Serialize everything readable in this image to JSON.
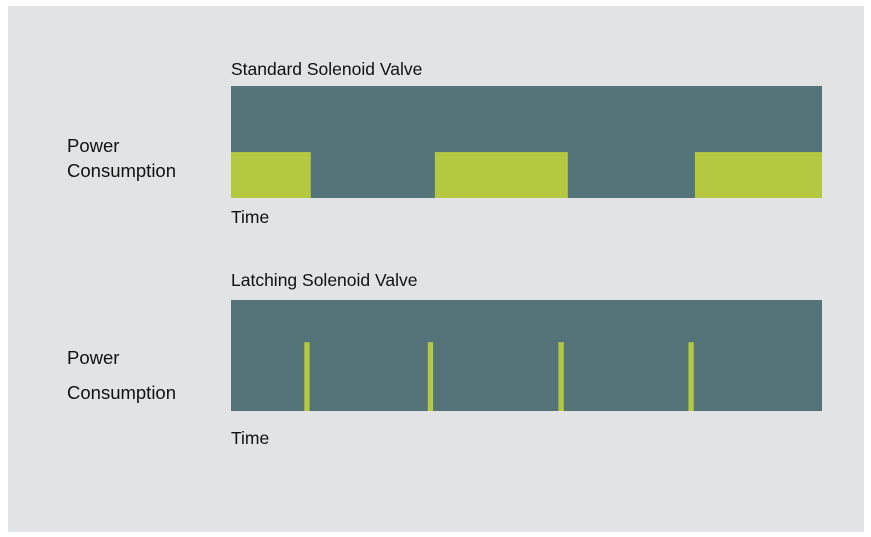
{
  "colors": {
    "background": "#e2e3e4",
    "panel": "#557479",
    "power": "#b4c842",
    "text": "#111111"
  },
  "chart_data": [
    {
      "type": "area",
      "title": "Standard Solenoid Valve",
      "ylabel": [
        "Power",
        "Consumption"
      ],
      "xlabel": "Time",
      "xlim": [
        0,
        1
      ],
      "ylim": [
        0,
        1
      ],
      "grid": false,
      "pulses": [
        {
          "start": 0.0,
          "end": 0.135,
          "level": 0.41
        },
        {
          "start": 0.345,
          "end": 0.57,
          "level": 0.41
        },
        {
          "start": 0.785,
          "end": 1.0,
          "level": 0.41
        }
      ]
    },
    {
      "type": "area",
      "title": "Latching Solenoid Valve",
      "ylabel": [
        "Power",
        "Consumption"
      ],
      "xlabel": "Time",
      "xlim": [
        0,
        1
      ],
      "ylim": [
        0,
        1
      ],
      "grid": false,
      "pulses": [
        {
          "start": 0.124,
          "end": 0.133,
          "level": 0.62
        },
        {
          "start": 0.333,
          "end": 0.342,
          "level": 0.62
        },
        {
          "start": 0.554,
          "end": 0.563,
          "level": 0.62
        },
        {
          "start": 0.774,
          "end": 0.783,
          "level": 0.62
        }
      ]
    }
  ]
}
